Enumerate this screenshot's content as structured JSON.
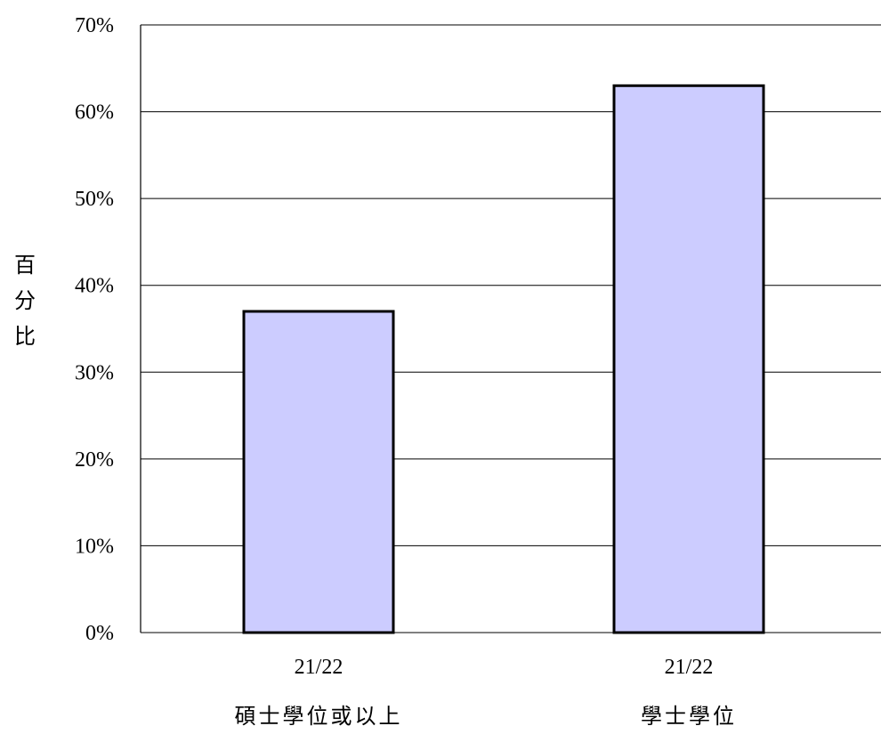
{
  "chart_data": {
    "type": "bar",
    "ylabel": "百分比",
    "ylim": [
      0,
      70
    ],
    "y_tick_step": 10,
    "y_tick_format": "percent",
    "grid": true,
    "bar_color": "#ccccff",
    "categories": [
      {
        "period": "21/22",
        "label": "碩士學位或以上"
      },
      {
        "period": "21/22",
        "label": "學士學位"
      }
    ],
    "values": [
      37,
      63
    ]
  }
}
